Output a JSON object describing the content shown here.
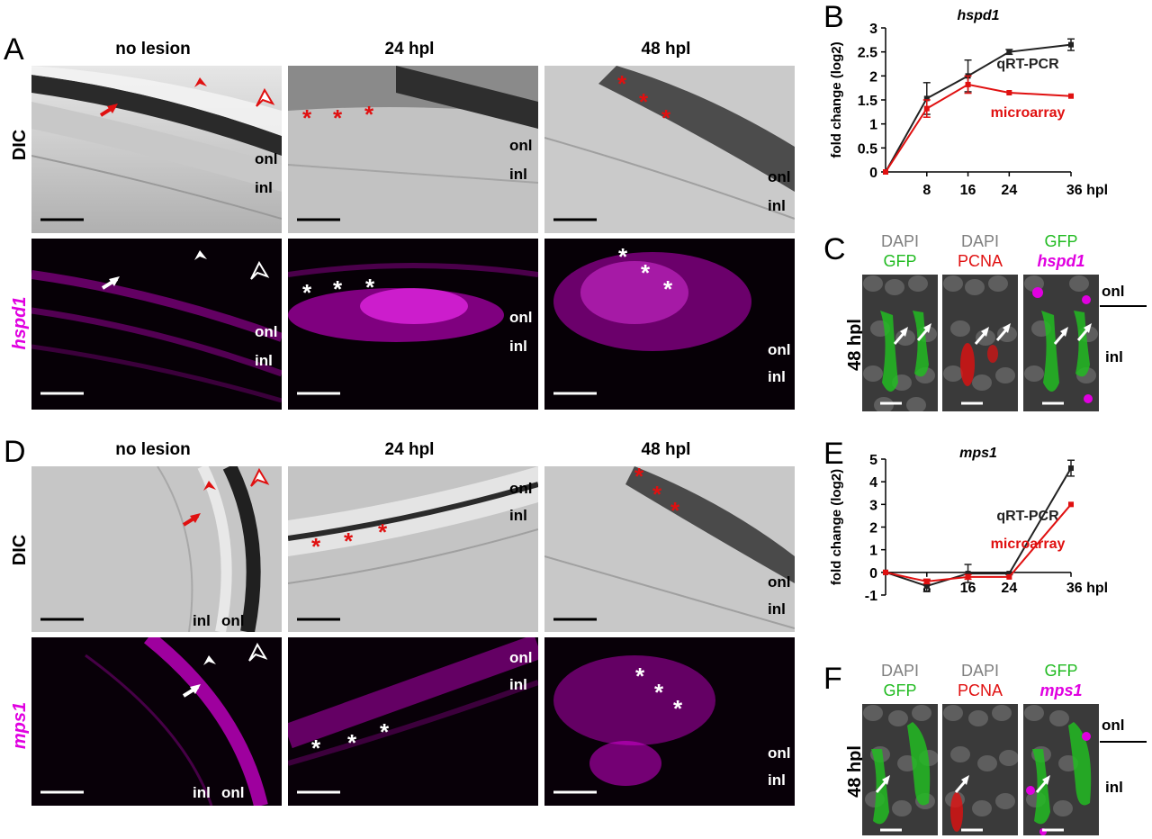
{
  "labels": {
    "A": "A",
    "B": "B",
    "C": "C",
    "D": "D",
    "E": "E",
    "F": "F"
  },
  "columns": [
    "no lesion",
    "24 hpl",
    "48 hpl"
  ],
  "rows": {
    "dic": "DIC",
    "hspd1": "hspd1",
    "mps1": "mps1"
  },
  "layers": {
    "onl": "onl",
    "inl": "inl"
  },
  "marks": {
    "asterisk": "*"
  },
  "panel_c": {
    "time": "48 hpl",
    "headers": [
      {
        "top": "DAPI",
        "bottom": "GFP",
        "top_color": "#808080",
        "bottom_color": "#22bb22"
      },
      {
        "top": "DAPI",
        "bottom": "PCNA",
        "top_color": "#808080",
        "bottom_color": "#e01010"
      },
      {
        "top": "GFP",
        "bottom": "hspd1",
        "top_color": "#22bb22",
        "bottom_color": "#e000e0"
      }
    ]
  },
  "panel_f": {
    "time": "48 hpl",
    "headers": [
      {
        "top": "DAPI",
        "bottom": "GFP",
        "top_color": "#808080",
        "bottom_color": "#22bb22"
      },
      {
        "top": "DAPI",
        "bottom": "PCNA",
        "top_color": "#808080",
        "bottom_color": "#e01010"
      },
      {
        "top": "GFP",
        "bottom": "mps1",
        "top_color": "#22bb22",
        "bottom_color": "#e000e0"
      }
    ]
  },
  "colors": {
    "magenta": "#e000e0",
    "red": "#e01010",
    "green": "#22bb22",
    "black": "#222222"
  },
  "chart_data": [
    {
      "type": "line",
      "title": "hspd1",
      "ylabel": "fold change (log2)",
      "x": [
        0,
        8,
        16,
        24,
        36
      ],
      "xticklabels": [
        "8",
        "16",
        "24",
        "36 hpl"
      ],
      "xticks": [
        8,
        16,
        24,
        36
      ],
      "ylim": [
        0,
        3
      ],
      "yticks": [
        0,
        0.5,
        1,
        1.5,
        2,
        2.5,
        3
      ],
      "yticklabels": [
        "0",
        "0.5",
        "1",
        "1.5",
        "2",
        "2.5",
        "3"
      ],
      "series": [
        {
          "name": "qRT-PCR",
          "color": "#222222",
          "values": [
            0,
            1.53,
            2.0,
            2.5,
            2.65
          ],
          "errors": [
            0,
            0.33,
            0.33,
            0.05,
            0.12
          ]
        },
        {
          "name": "microarray",
          "color": "#e01010",
          "values": [
            0,
            1.32,
            1.82,
            1.65,
            1.58
          ],
          "errors": [
            0,
            0.18,
            0.18,
            0,
            0
          ]
        }
      ]
    },
    {
      "type": "line",
      "title": "mps1",
      "ylabel": "fold change (log2)",
      "x": [
        0,
        8,
        16,
        24,
        36
      ],
      "xticklabels": [
        "8",
        "16",
        "24",
        "36 hpl"
      ],
      "xticks": [
        8,
        16,
        24,
        36
      ],
      "ylim": [
        -1,
        5
      ],
      "yticks": [
        -1,
        0,
        1,
        2,
        3,
        4,
        5
      ],
      "yticklabels": [
        "-1",
        "0",
        "1",
        "2",
        "3",
        "4",
        "5"
      ],
      "series": [
        {
          "name": "qRT-PCR",
          "color": "#222222",
          "values": [
            0,
            -0.6,
            -0.05,
            -0.05,
            4.6
          ],
          "errors": [
            0,
            0.25,
            0.4,
            0.05,
            0.35
          ]
        },
        {
          "name": "microarray",
          "color": "#e01010",
          "values": [
            0,
            -0.4,
            -0.2,
            -0.2,
            3.0
          ],
          "errors": [
            0,
            0.1,
            0.1,
            0,
            0
          ]
        }
      ]
    }
  ]
}
